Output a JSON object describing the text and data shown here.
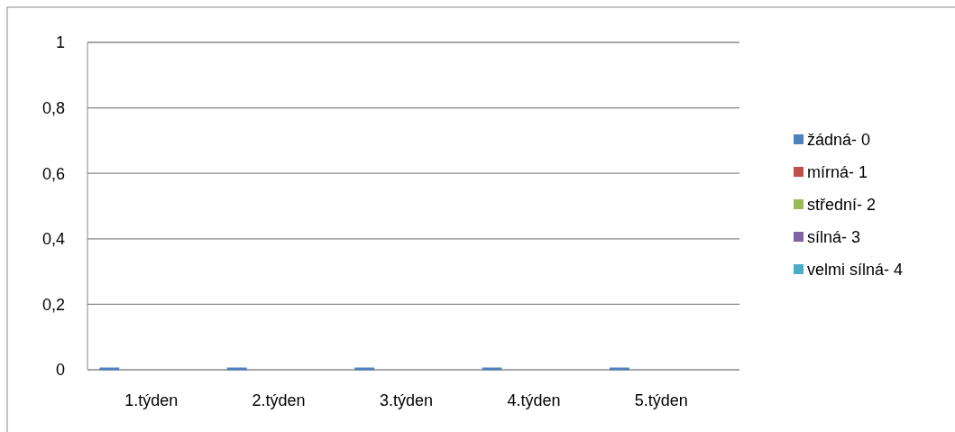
{
  "chart_data": {
    "type": "bar",
    "categories": [
      "1.týden",
      "2.týden",
      "3.týden",
      "4.týden",
      "5.týden"
    ],
    "series": [
      {
        "name": "žádná- 0",
        "color": "#4f81bd",
        "values": [
          0,
          0,
          0,
          0,
          0
        ]
      },
      {
        "name": "mírná- 1",
        "color": "#c0504d",
        "values": [
          null,
          null,
          null,
          null,
          null
        ]
      },
      {
        "name": "střední- 2",
        "color": "#9bbb59",
        "values": [
          null,
          null,
          null,
          null,
          null
        ]
      },
      {
        "name": "sílná- 3",
        "color": "#8064a2",
        "values": [
          null,
          null,
          null,
          null,
          null
        ]
      },
      {
        "name": "velmi sílná- 4",
        "color": "#4bacc6",
        "values": [
          null,
          null,
          null,
          null,
          null
        ]
      }
    ],
    "ylim": [
      0,
      1
    ],
    "yticks": [
      0,
      {
        "value": 0.2,
        "label": "0,2"
      },
      {
        "value": 0.4,
        "label": "0,4"
      },
      {
        "value": 0.6,
        "label": "0,6"
      },
      {
        "value": 0.8,
        "label": "0,8"
      },
      1
    ],
    "grid": "y",
    "legend": "right"
  }
}
